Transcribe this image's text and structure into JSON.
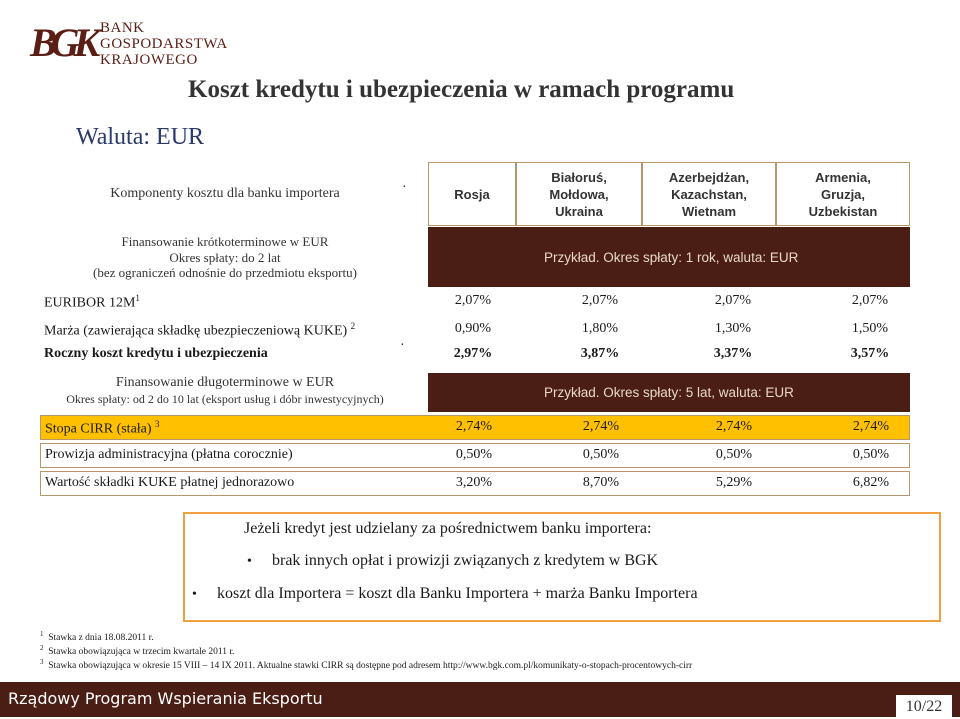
{
  "logo": {
    "mark": "BGK",
    "line1": "BANK",
    "line2": "GOSPODARSTWA",
    "line3": "KRAJOWEGO"
  },
  "title": "Koszt kredytu i ubezpieczenia w ramach programu",
  "currency_label": "Waluta: EUR",
  "header": {
    "components_label": "Komponenty kosztu dla banku importera",
    "columns": [
      "Rosja",
      "Białoruś, Mołdowa, Ukraina",
      "Azerbejdżan, Kazachstan, Wietnam",
      "Armenia, Gruzja, Uzbekistan"
    ]
  },
  "short_term": {
    "line1": "Finansowanie krótkoterminowe w EUR",
    "line2": "Okres spłaty: do 2 lat",
    "line3": "(bez ograniczeń odnośnie do przedmiotu eksportu)",
    "example": "Przykład. Okres spłaty: 1 rok, waluta: EUR",
    "rows": [
      {
        "label": "EURIBOR 12M",
        "sup": "1",
        "values": [
          "2,07%",
          "2,07%",
          "2,07%",
          "2,07%"
        ]
      },
      {
        "label": "Marża (zawierająca składkę ubezpieczeniową KUKE)",
        "sup": "2",
        "values": [
          "0,90%",
          "1,80%",
          "1,30%",
          "1,50%"
        ]
      },
      {
        "label": "Roczny koszt kredytu i ubezpieczenia",
        "sup": "",
        "values": [
          "2,97%",
          "3,87%",
          "3,37%",
          "3,57%"
        ]
      }
    ]
  },
  "long_term": {
    "line1": "Finansowanie długoterminowe w EUR",
    "line2": "Okres spłaty: od 2 do 10 lat (eksport usług i dóbr inwestycyjnych)",
    "example": "Przykład. Okres spłaty: 5 lat, waluta: EUR",
    "rows": [
      {
        "label": "Stopa CIRR (stała)",
        "sup": "3",
        "values": [
          "2,74%",
          "2,74%",
          "2,74%",
          "2,74%"
        ]
      },
      {
        "label": "Prowizja administracyjna (płatna corocznie)",
        "sup": "",
        "values": [
          "0,50%",
          "0,50%",
          "0,50%",
          "0,50%"
        ]
      },
      {
        "label": "Wartość składki KUKE płatnej jednorazowo",
        "sup": "",
        "values": [
          "3,20%",
          "8,70%",
          "5,29%",
          "6,82%"
        ]
      }
    ]
  },
  "notes": {
    "heading": "Jeżeli kredyt jest udzielany za pośrednictwem banku importera:",
    "bullet1": "brak innych opłat i prowizji związanych z kredytem w BGK",
    "bullet2": "koszt dla Importera = koszt dla Banku Importera + marża Banku Importera"
  },
  "footnotes": [
    {
      "num": "1",
      "text": "Stawka z dnia 18.08.2011 r."
    },
    {
      "num": "2",
      "text": "Stawka obowiązująca w trzecim kwartale 2011 r."
    },
    {
      "num": "3",
      "text": "Stawka obowiązująca w okresie 15 VIII – 14 IX 2011. Aktualne stawki CIRR są dostępne pod adresem http://www.bgk.com.pl/komunikaty-o-stopach-procentowych-cirr"
    }
  ],
  "footer": {
    "program": "Rządowy Program Wspierania Eksportu",
    "page": "10/22"
  },
  "colors": {
    "brand_brown": "#4a1e14",
    "highlight": "#ffc000",
    "note_border": "#f0a040",
    "table_border": "#b8956a"
  }
}
